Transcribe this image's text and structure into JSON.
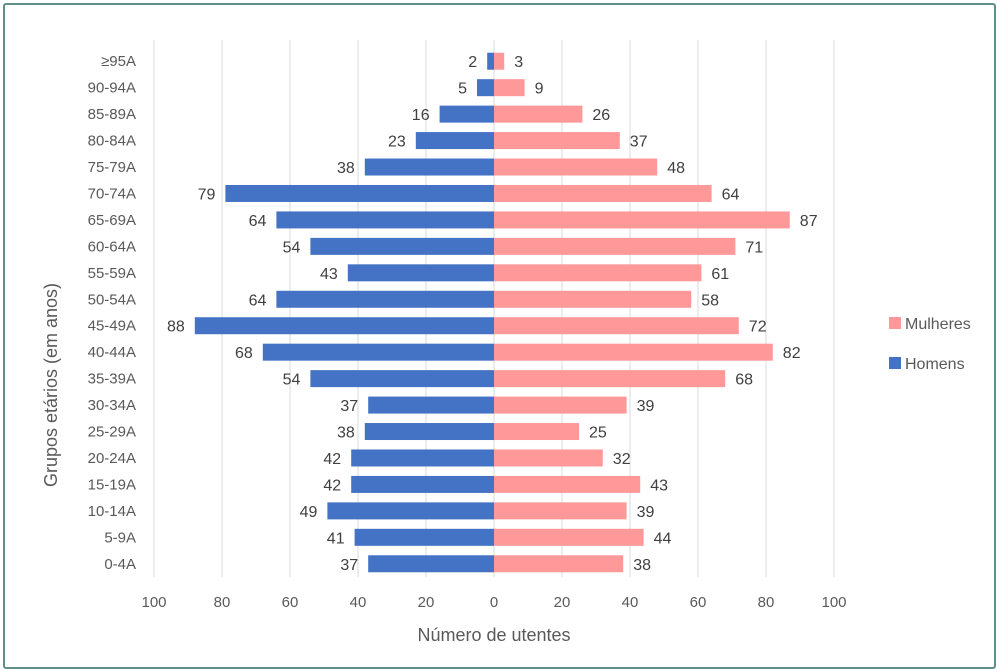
{
  "chart_data": {
    "type": "bar",
    "orientation": "horizontal",
    "layout": "population-pyramid",
    "categories": [
      "0-4A",
      "5-9A",
      "10-14A",
      "15-19A",
      "20-24A",
      "25-29A",
      "30-34A",
      "35-39A",
      "40-44A",
      "45-49A",
      "50-54A",
      "55-59A",
      "60-64A",
      "65-69A",
      "70-74A",
      "75-79A",
      "80-84A",
      "85-89A",
      "90-94A",
      "≥95A"
    ],
    "series": [
      {
        "name": "Homens",
        "color": "#4472c4",
        "side": "left",
        "values": [
          37,
          41,
          49,
          42,
          42,
          38,
          37,
          54,
          68,
          88,
          64,
          43,
          54,
          64,
          79,
          38,
          23,
          16,
          5,
          2
        ]
      },
      {
        "name": "Mulheres",
        "color": "#ff9999",
        "side": "right",
        "values": [
          38,
          44,
          39,
          43,
          32,
          25,
          39,
          68,
          82,
          72,
          58,
          61,
          71,
          87,
          64,
          48,
          37,
          26,
          9,
          3
        ]
      }
    ],
    "title": "",
    "xlabel": "Número de utentes",
    "ylabel": "Grupos etários (em anos)",
    "xlim": [
      -100,
      100
    ],
    "xticks": [
      -100,
      -80,
      -60,
      -40,
      -20,
      0,
      20,
      40,
      60,
      80,
      100
    ],
    "xtick_labels": [
      "100",
      "80",
      "60",
      "40",
      "20",
      "0",
      "20",
      "40",
      "60",
      "80",
      "100"
    ],
    "grid": "vertical",
    "legend": {
      "placement": "right",
      "order": [
        "Mulheres",
        "Homens"
      ]
    }
  }
}
